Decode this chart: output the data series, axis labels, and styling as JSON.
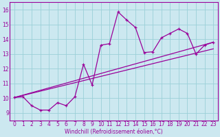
{
  "title": "",
  "xlabel": "Windchill (Refroidissement éolien,°C)",
  "ylabel": "",
  "xlim": [
    -0.5,
    23.5
  ],
  "ylim": [
    8.5,
    16.5
  ],
  "xticks": [
    0,
    1,
    2,
    3,
    4,
    5,
    6,
    7,
    8,
    9,
    10,
    11,
    12,
    13,
    14,
    15,
    16,
    17,
    18,
    19,
    20,
    21,
    22,
    23
  ],
  "yticks": [
    9,
    10,
    11,
    12,
    13,
    14,
    15,
    16
  ],
  "bg_color": "#cce8f0",
  "line_color": "#990099",
  "grid_color": "#aaddee",
  "series": [
    [
      0,
      10.05
    ],
    [
      1,
      10.1
    ],
    [
      2,
      9.5
    ],
    [
      3,
      9.2
    ],
    [
      4,
      9.2
    ],
    [
      5,
      9.7
    ],
    [
      6,
      9.5
    ],
    [
      7,
      10.1
    ],
    [
      8,
      12.3
    ],
    [
      9,
      10.9
    ],
    [
      10,
      13.6
    ],
    [
      11,
      13.7
    ],
    [
      12,
      15.85
    ],
    [
      13,
      15.3
    ],
    [
      14,
      14.8
    ],
    [
      15,
      13.1
    ],
    [
      16,
      13.15
    ],
    [
      17,
      14.1
    ],
    [
      18,
      14.4
    ],
    [
      19,
      14.7
    ],
    [
      20,
      14.4
    ],
    [
      21,
      13.0
    ],
    [
      22,
      13.6
    ],
    [
      23,
      13.8
    ]
  ],
  "line1": [
    [
      0,
      10.05
    ],
    [
      23,
      13.8
    ]
  ],
  "line2": [
    [
      0,
      10.05
    ],
    [
      23,
      13.35
    ]
  ],
  "tick_fontsize": 5.5,
  "xlabel_fontsize": 5.5
}
